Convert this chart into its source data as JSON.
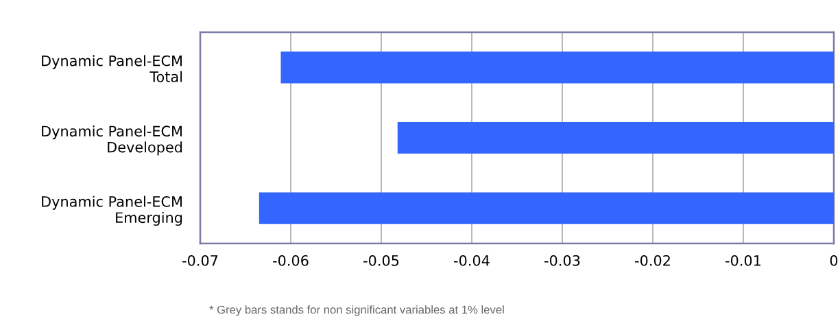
{
  "chart_data": {
    "type": "bar",
    "orientation": "horizontal",
    "categories": [
      "Dynamic Panel-ECM\nTotal",
      "Dynamic Panel-ECM\nDeveloped",
      "Dynamic Panel-ECM\nEmerging"
    ],
    "values": [
      -0.0611,
      -0.0482,
      -0.0635
    ],
    "color": "#3366ff",
    "xlim": [
      -0.07,
      0
    ],
    "xticks": [
      -0.07,
      -0.06,
      -0.05,
      -0.04,
      -0.03,
      -0.02,
      -0.01,
      0
    ],
    "grid": "x",
    "annotations": [
      "* Grey bars stands for non significant variables at 1% level"
    ]
  }
}
